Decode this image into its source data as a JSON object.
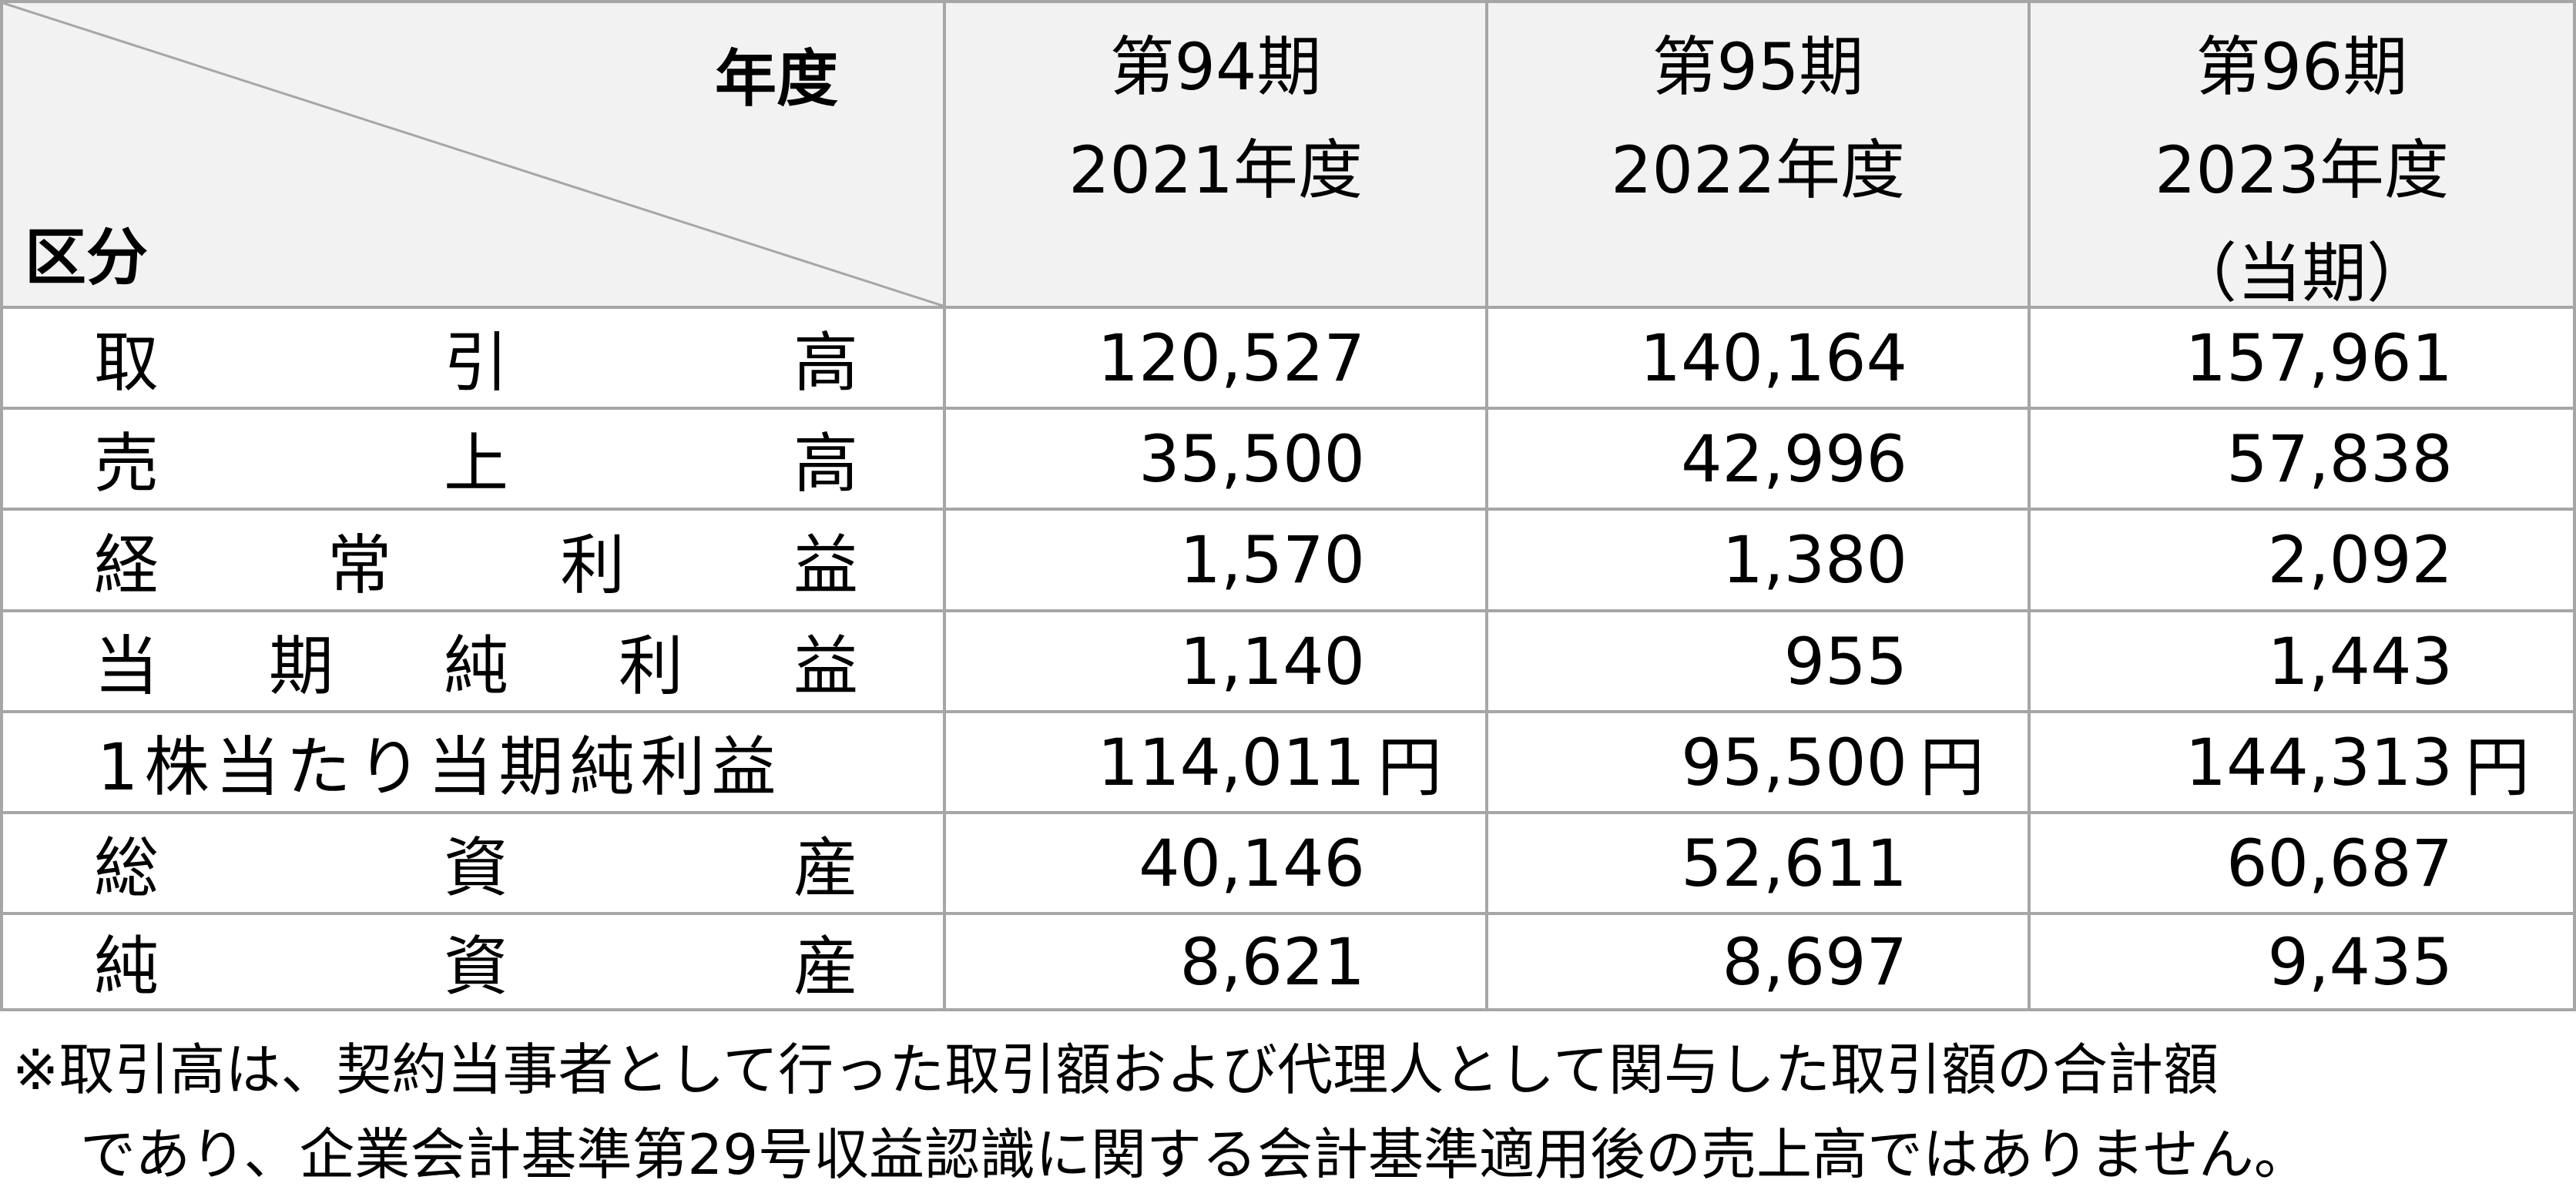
{
  "table": {
    "corner": {
      "year_label": "年度",
      "category_label": "区分"
    },
    "columns": [
      {
        "period": "第94期",
        "year": "2021年度",
        "note": ""
      },
      {
        "period": "第95期",
        "year": "2022年度",
        "note": ""
      },
      {
        "period": "第96期",
        "year": "2023年度",
        "note": "（当期）"
      }
    ],
    "rows": [
      {
        "label_chars": [
          "取",
          "引",
          "高"
        ],
        "values": [
          "120,527",
          "140,164",
          "157,961"
        ],
        "unit": ""
      },
      {
        "label_chars": [
          "売",
          "上",
          "高"
        ],
        "values": [
          "35,500",
          "42,996",
          "57,838"
        ],
        "unit": ""
      },
      {
        "label_chars": [
          "経",
          "常",
          "利",
          "益"
        ],
        "values": [
          "1,570",
          "1,380",
          "2,092"
        ],
        "unit": ""
      },
      {
        "label_chars": [
          "当",
          "期",
          "純",
          "利",
          "益"
        ],
        "values": [
          "1,140",
          "955",
          "1,443"
        ],
        "unit": ""
      },
      {
        "label": "1株当たり当期純利益",
        "values": [
          "114,011",
          "95,500",
          "144,313"
        ],
        "unit": "円"
      },
      {
        "label_chars": [
          "総",
          "資",
          "産"
        ],
        "values": [
          "40,146",
          "52,611",
          "60,687"
        ],
        "unit": ""
      },
      {
        "label_chars": [
          "純",
          "資",
          "産"
        ],
        "values": [
          "8,621",
          "8,697",
          "9,435"
        ],
        "unit": ""
      }
    ]
  },
  "footnote": {
    "line1": "※取引高は、契約当事者として行った取引額および代理人として関与した取引額の合計額",
    "line2": "であり、企業会計基準第29号収益認識に関する会計基準適用後の売上高ではありません。"
  }
}
